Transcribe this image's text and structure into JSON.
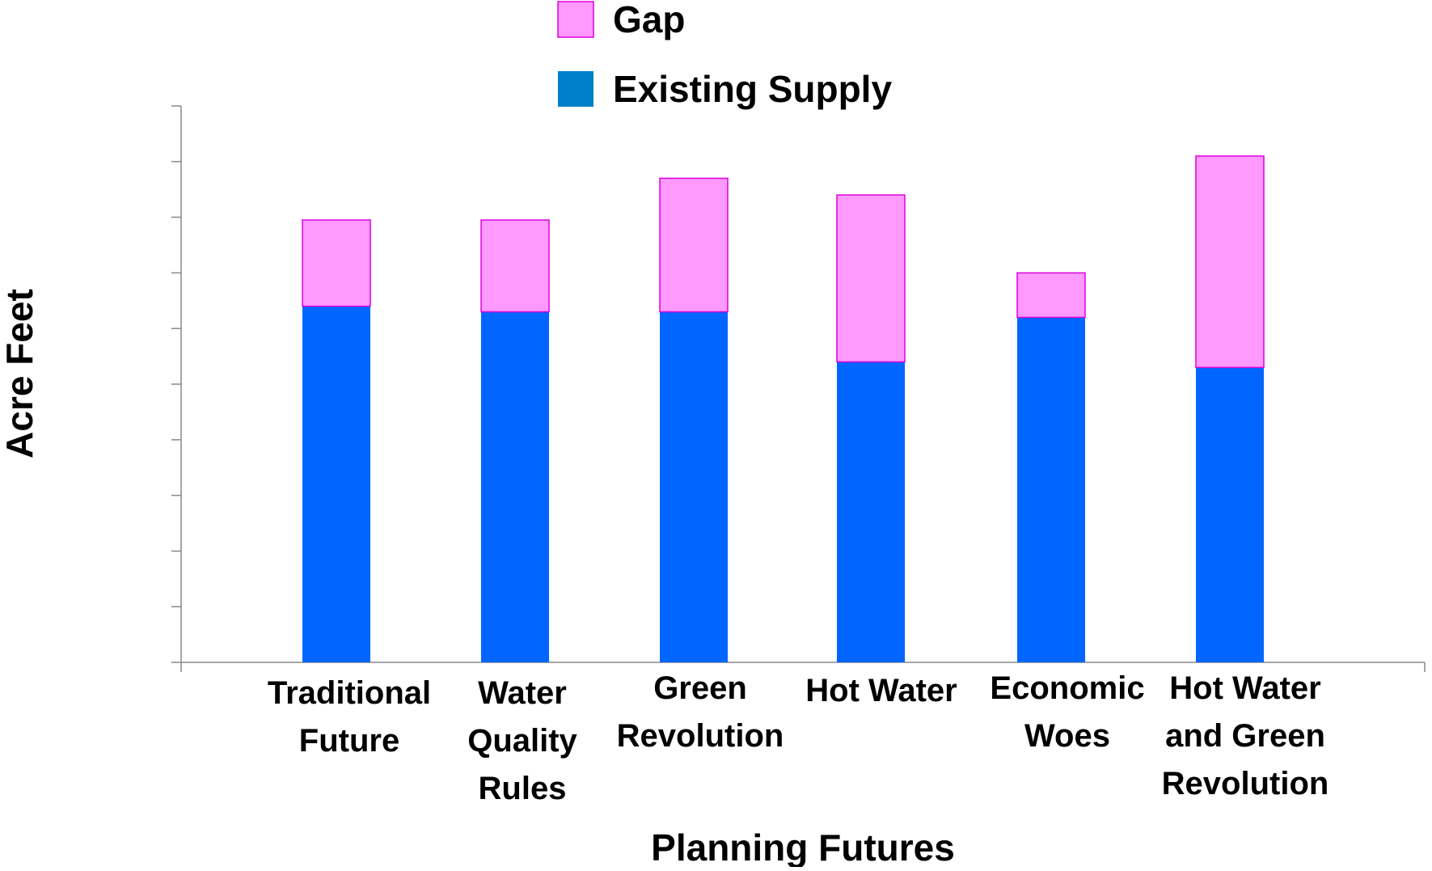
{
  "chart_data": {
    "type": "bar",
    "stacked": true,
    "title": "",
    "xlabel": "Planning Futures",
    "ylabel": "Acre Feet",
    "categories": [
      [
        "Traditional",
        "Future"
      ],
      [
        "Water",
        "Quality",
        "Rules"
      ],
      [
        "Green",
        "Revolution"
      ],
      [
        "Hot Water"
      ],
      [
        "Economic",
        "Woes"
      ],
      [
        "Hot Water",
        "and Green",
        "Revolution"
      ]
    ],
    "series": [
      {
        "name": "Existing Supply",
        "color": "#0066ff",
        "values": [
          6.4,
          6.3,
          6.3,
          5.4,
          6.2,
          5.3
        ]
      },
      {
        "name": "Gap",
        "color": "#ff99ff",
        "values": [
          1.55,
          1.65,
          2.4,
          3.0,
          0.8,
          3.8
        ]
      }
    ],
    "ylim": [
      0,
      10
    ],
    "y_tick_labels_shown": false,
    "grid": false,
    "legend": {
      "position": "top-center",
      "items": [
        {
          "name": "Gap",
          "swatch_color": "#ff99ff"
        },
        {
          "name": "Existing Supply",
          "swatch_color": "#0080c8"
        }
      ]
    }
  }
}
